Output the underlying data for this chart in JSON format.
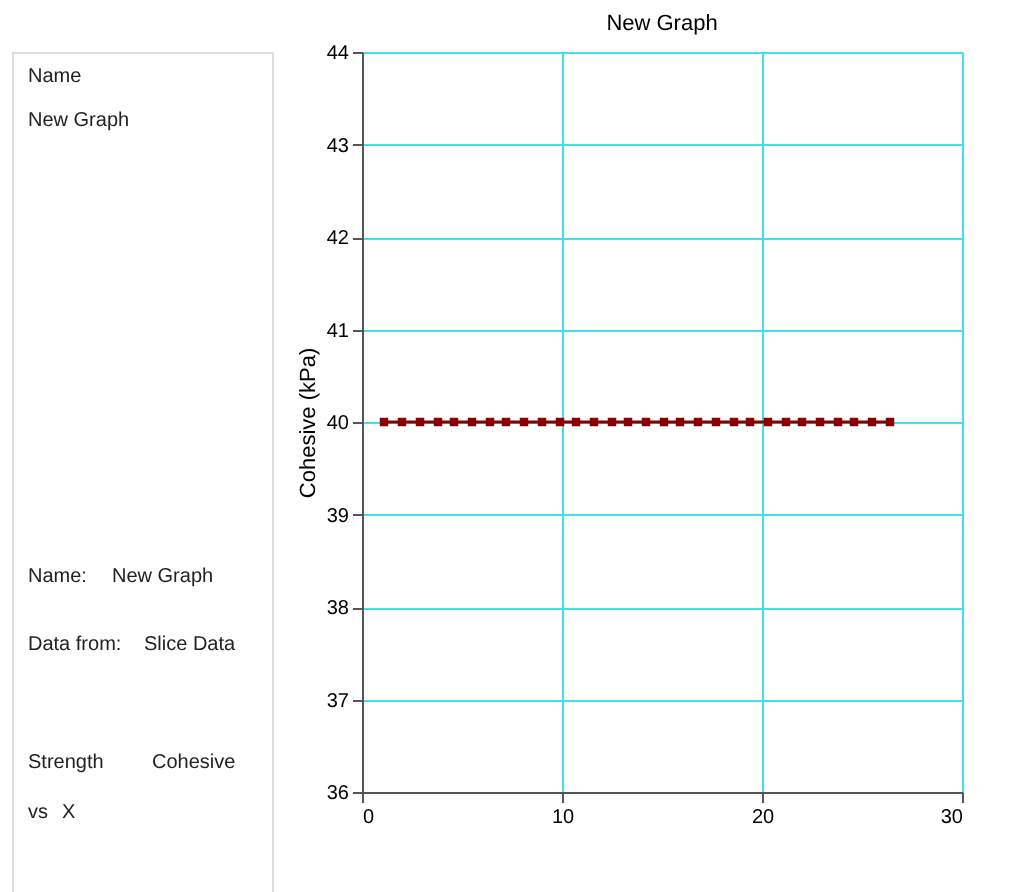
{
  "chart_data": {
    "type": "line",
    "title": "New Graph",
    "ylabel": "Cohesive (kPa)",
    "x": [
      1.1,
      2.0,
      2.9,
      3.8,
      4.6,
      5.5,
      6.4,
      7.2,
      8.1,
      9.0,
      9.9,
      10.7,
      11.6,
      12.5,
      13.3,
      14.2,
      15.1,
      15.9,
      16.8,
      17.7,
      18.6,
      19.4,
      20.3,
      21.2,
      22.0,
      22.9,
      23.8,
      24.6,
      25.5,
      26.4
    ],
    "series": [
      {
        "color": "#8b0000",
        "values": [
          40,
          40,
          40,
          40,
          40,
          40,
          40,
          40,
          40,
          40,
          40,
          40,
          40,
          40,
          40,
          40,
          40,
          40,
          40,
          40,
          40,
          40,
          40,
          40,
          40,
          40,
          40,
          40,
          40,
          40
        ]
      }
    ],
    "xlim": [
      0,
      30
    ],
    "xticks": [
      0,
      10,
      20,
      30
    ],
    "ylim": [
      36,
      44
    ],
    "yticks": [
      36,
      37,
      38,
      39,
      40,
      41,
      42,
      43,
      44
    ],
    "grid": true,
    "marker": "square",
    "line_style": "solid",
    "annotations": [
      "Name",
      "New Graph",
      "Name:",
      "New Graph",
      "Data from:",
      "Slice Data",
      "Strength",
      "Cohesive",
      "vs",
      "X"
    ]
  }
}
